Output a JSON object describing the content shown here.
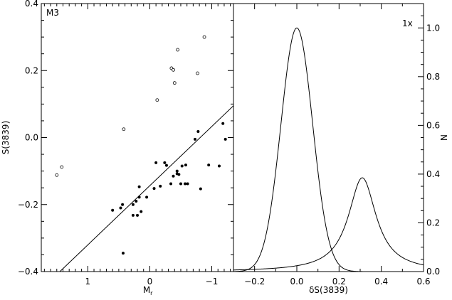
{
  "chart_data": [
    {
      "type": "scatter",
      "annotation": "M3",
      "xlabel": "M",
      "xlabel_subscript": "r",
      "ylabel": "S(3839)",
      "xlim": [
        1.75,
        -1.35
      ],
      "ylim": [
        -0.4,
        0.4
      ],
      "x_ticks": [
        1,
        0,
        -1
      ],
      "x_tick_labels": [
        "1",
        "0",
        "−1"
      ],
      "y_ticks": [
        -0.4,
        -0.2,
        0.0,
        0.2,
        0.4
      ],
      "y_tick_labels": [
        "−0.4",
        "−0.2",
        "0.0",
        "0.2",
        "0.4"
      ],
      "series": [
        {
          "marker": "filled-circle",
          "x": [
            0.6,
            0.47,
            0.43,
            0.27,
            0.27,
            0.22,
            0.2,
            0.17,
            0.17,
            0.14,
            0.05,
            -0.07,
            -0.1,
            -0.17,
            -0.24,
            -0.27,
            -0.34,
            -0.38,
            -0.44,
            -0.44,
            -0.47,
            -0.5,
            -0.52,
            -0.57,
            -0.58,
            -0.61,
            -0.73,
            -0.78,
            -0.82,
            -0.95,
            -1.12,
            -1.18,
            -1.22,
            0.44
          ],
          "y": [
            -0.217,
            -0.21,
            -0.345,
            -0.232,
            -0.2,
            -0.19,
            -0.232,
            -0.178,
            -0.147,
            -0.221,
            -0.178,
            -0.152,
            -0.075,
            -0.145,
            -0.075,
            -0.083,
            -0.138,
            -0.115,
            -0.108,
            -0.1,
            -0.11,
            -0.138,
            -0.085,
            -0.138,
            -0.082,
            -0.138,
            -0.005,
            0.018,
            -0.153,
            -0.082,
            -0.085,
            0.042,
            -0.005,
            -0.2
          ]
        },
        {
          "marker": "open-circle",
          "x": [
            1.5,
            1.42,
            0.42,
            -0.12,
            -0.35,
            -0.38,
            -0.4,
            -0.45,
            -0.77,
            -0.88
          ],
          "y": [
            -0.112,
            -0.088,
            0.025,
            0.112,
            0.207,
            0.202,
            0.163,
            0.262,
            0.192,
            0.3
          ]
        },
        {
          "type": "line",
          "x": [
            1.45,
            -1.35
          ],
          "y": [
            -0.4,
            0.095
          ]
        }
      ]
    },
    {
      "type": "line",
      "annotation": "1x",
      "xlabel": "δS(3839)",
      "ylabel": "N",
      "xlim": [
        -0.3,
        0.6
      ],
      "ylim": [
        0,
        1.1
      ],
      "x_ticks": [
        -0.2,
        0.0,
        0.2,
        0.4,
        0.6
      ],
      "x_tick_labels": [
        "−0.2",
        "0.0",
        "0.2",
        "0.4",
        "0.6"
      ],
      "y_ticks": [
        0,
        0.2,
        0.4,
        0.6,
        0.8,
        1.0
      ],
      "y_tick_labels": [
        "0.0",
        "0.2",
        "0.4",
        "0.6",
        "0.8",
        "1.0"
      ],
      "series": [
        {
          "shape": "gaussian",
          "center": 0.0,
          "peak": 1.0,
          "sigma": 0.075
        },
        {
          "shape": "lorentzian",
          "center": 0.31,
          "peak": 0.385,
          "gamma": 0.08
        }
      ]
    }
  ]
}
